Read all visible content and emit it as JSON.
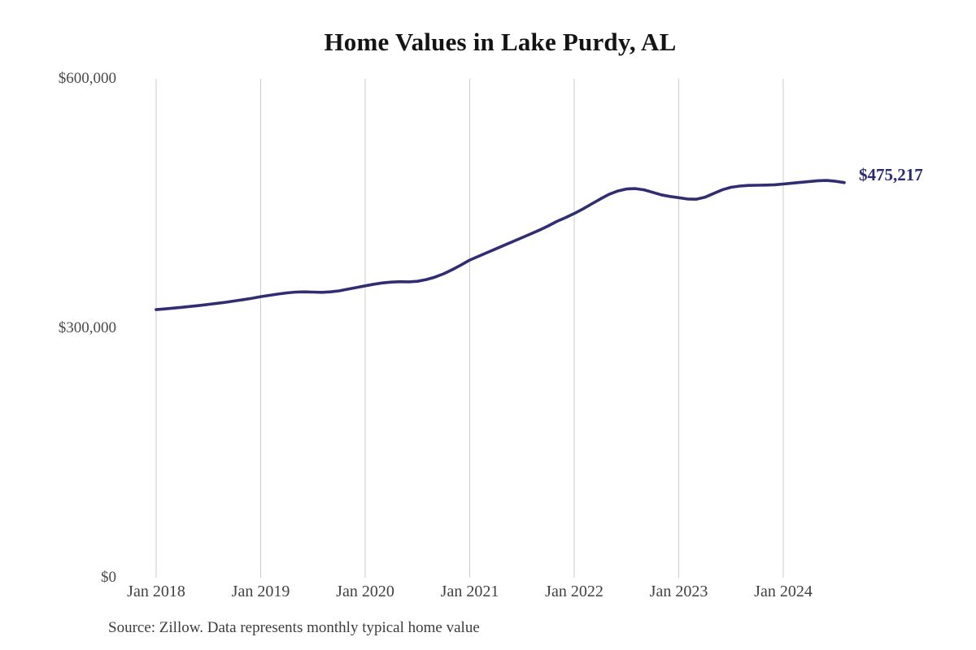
{
  "chart": {
    "title": "Home Values in Lake Purdy, AL",
    "end_label": "$475,217",
    "source": "Source: Zillow. Data represents monthly typical home value",
    "y_axis": {
      "labels": [
        "$600,000",
        "$300,000",
        "$0"
      ]
    },
    "x_axis": {
      "labels": [
        "Jan 2018",
        "Jan 2019",
        "Jan 2020",
        "Jan 2021",
        "Jan 2022",
        "Jan 2023",
        "Jan 2024"
      ]
    },
    "colors": {
      "line": "#312d72",
      "grid": "#cbcbcb",
      "end_label": "#2b2970",
      "title": "#141414",
      "axis_text": "#454545"
    }
  },
  "chart_data": {
    "type": "line",
    "title": "Home Values in Lake Purdy, AL",
    "series_name": "Typical home value (USD)",
    "x": [
      "2018-01",
      "2018-02",
      "2018-03",
      "2018-04",
      "2018-05",
      "2018-06",
      "2018-07",
      "2018-08",
      "2018-09",
      "2018-10",
      "2018-11",
      "2018-12",
      "2019-01",
      "2019-02",
      "2019-03",
      "2019-04",
      "2019-05",
      "2019-06",
      "2019-07",
      "2019-08",
      "2019-09",
      "2019-10",
      "2019-11",
      "2019-12",
      "2020-01",
      "2020-02",
      "2020-03",
      "2020-04",
      "2020-05",
      "2020-06",
      "2020-07",
      "2020-08",
      "2020-09",
      "2020-10",
      "2020-11",
      "2020-12",
      "2021-01",
      "2021-02",
      "2021-03",
      "2021-04",
      "2021-05",
      "2021-06",
      "2021-07",
      "2021-08",
      "2021-09",
      "2021-10",
      "2021-11",
      "2021-12",
      "2022-01",
      "2022-02",
      "2022-03",
      "2022-04",
      "2022-05",
      "2022-06",
      "2022-07",
      "2022-08",
      "2022-09",
      "2022-10",
      "2022-11",
      "2022-12",
      "2023-01",
      "2023-02",
      "2023-03",
      "2023-04",
      "2023-05",
      "2023-06",
      "2023-07",
      "2023-08",
      "2023-09",
      "2023-10",
      "2023-11",
      "2023-12",
      "2024-01",
      "2024-02",
      "2024-03",
      "2024-04",
      "2024-05",
      "2024-06",
      "2024-07",
      "2024-08"
    ],
    "values": [
      322400,
      323300,
      324200,
      325200,
      326300,
      327500,
      328700,
      330000,
      331300,
      332800,
      334400,
      336100,
      338000,
      339600,
      341100,
      342500,
      343500,
      343800,
      343500,
      343200,
      343800,
      345000,
      347000,
      349000,
      351000,
      353000,
      354500,
      355500,
      356000,
      355800,
      356500,
      358500,
      361500,
      365500,
      370500,
      376000,
      382000,
      386500,
      391000,
      395500,
      400000,
      404500,
      409000,
      413500,
      418000,
      423000,
      428500,
      433000,
      438000,
      443500,
      449500,
      455500,
      461000,
      465000,
      467500,
      468000,
      466500,
      463500,
      460500,
      458500,
      457000,
      455500,
      455200,
      457500,
      462000,
      466500,
      469500,
      471000,
      471800,
      472000,
      472200,
      472600,
      473500,
      474500,
      475500,
      476500,
      477500,
      477800,
      476800,
      475217
    ],
    "end_value": 475217,
    "end_value_label": "$475,217",
    "xlabel": "",
    "ylabel": "",
    "x_tick_labels": [
      "Jan 2018",
      "Jan 2019",
      "Jan 2020",
      "Jan 2021",
      "Jan 2022",
      "Jan 2023",
      "Jan 2024"
    ],
    "y_tick_labels": [
      "$0",
      "$300,000",
      "$600,000"
    ],
    "y_ticks": [
      0,
      300000,
      600000
    ],
    "ylim": [
      0,
      600000
    ],
    "grid": "vertical-only",
    "legend": "none",
    "source": "Source: Zillow. Data represents monthly typical home value"
  }
}
